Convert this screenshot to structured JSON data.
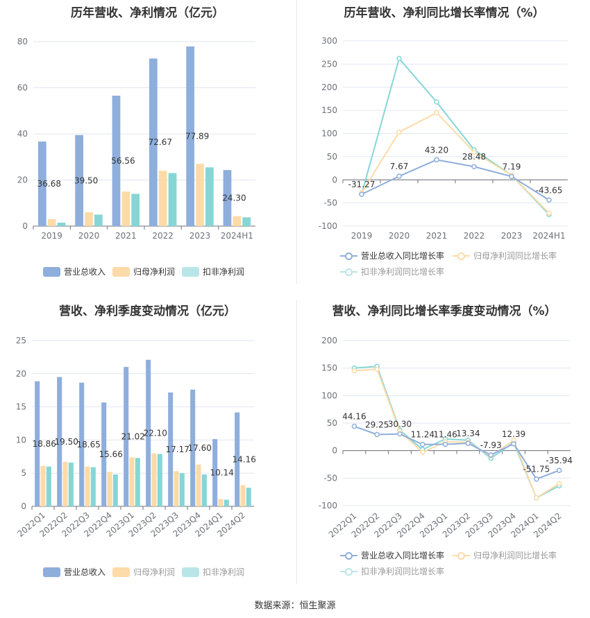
{
  "colors": {
    "revenue": "#8eaedc",
    "parent_profit": "#fcdba8",
    "deducted_profit": "#86d6d6",
    "grid": "#e0e6f1"
  },
  "footer": "数据来源：恒生聚源",
  "chart_data": [
    {
      "id": "annual_amount",
      "type": "bar",
      "title": "历年营收、净利情况（亿元）",
      "categories": [
        "2019",
        "2020",
        "2021",
        "2022",
        "2023",
        "2024H1"
      ],
      "ylim": [
        0,
        80
      ],
      "yticks": [
        0,
        20,
        40,
        60,
        80
      ],
      "series": [
        {
          "name": "营业总收入",
          "values": [
            36.68,
            39.5,
            56.56,
            72.67,
            77.89,
            24.3
          ],
          "labeled": true
        },
        {
          "name": "归母净利润",
          "values": [
            3.0,
            6.0,
            15.0,
            24.0,
            27.0,
            4.3
          ]
        },
        {
          "name": "扣非净利润",
          "values": [
            1.5,
            5.0,
            14.0,
            23.0,
            25.5,
            3.8
          ]
        }
      ],
      "legend_position": "bottom"
    },
    {
      "id": "annual_growth",
      "type": "line",
      "title": "历年营收、净利同比增长率情况（%）",
      "categories": [
        "2019",
        "2020",
        "2021",
        "2022",
        "2023",
        "2024H1"
      ],
      "ylim": [
        -100,
        300
      ],
      "yticks": [
        -100,
        -50,
        0,
        50,
        100,
        150,
        200,
        250,
        300
      ],
      "series": [
        {
          "name": "营业总收入同比增长率",
          "values": [
            -31.27,
            7.67,
            43.2,
            28.48,
            7.19,
            -43.65
          ],
          "labeled": true
        },
        {
          "name": "归母净利润同比增长率",
          "values": [
            -28,
            103,
            145,
            60,
            10,
            -72
          ]
        },
        {
          "name": "扣非净利润同比增长率",
          "values": [
            -31,
            262,
            168,
            65,
            10,
            -75
          ]
        }
      ],
      "legend_position": "bottom"
    },
    {
      "id": "quarterly_amount",
      "type": "bar",
      "title": "营收、净利季度变动情况（亿元）",
      "categories": [
        "2022Q1",
        "2022Q2",
        "2022Q3",
        "2022Q4",
        "2023Q1",
        "2023Q2",
        "2023Q3",
        "2023Q4",
        "2024Q1",
        "2024Q2"
      ],
      "ylim": [
        0,
        25
      ],
      "yticks": [
        0,
        5,
        10,
        15,
        20,
        25
      ],
      "series": [
        {
          "name": "营业总收入",
          "values": [
            18.86,
            19.5,
            18.65,
            15.66,
            21.02,
            22.1,
            17.17,
            17.6,
            10.14,
            14.16
          ],
          "labeled": true
        },
        {
          "name": "归母净利润",
          "values": [
            6.1,
            6.7,
            6.0,
            5.2,
            7.4,
            8.0,
            5.3,
            6.3,
            1.1,
            3.2
          ]
        },
        {
          "name": "扣非净利润",
          "values": [
            6.0,
            6.6,
            5.9,
            4.8,
            7.3,
            7.9,
            5.0,
            4.8,
            1.0,
            2.8
          ]
        }
      ],
      "legend_position": "bottom"
    },
    {
      "id": "quarterly_growth",
      "type": "line",
      "title": "营收、净利同比增长率季度变动情况（%）",
      "categories": [
        "2022Q1",
        "2022Q2",
        "2022Q3",
        "2022Q4",
        "2023Q1",
        "2023Q2",
        "2023Q3",
        "2023Q4",
        "2024Q1",
        "2024Q2"
      ],
      "ylim": [
        -100,
        200
      ],
      "yticks": [
        -100,
        -50,
        0,
        50,
        100,
        150,
        200
      ],
      "series": [
        {
          "name": "营业总收入同比增长率",
          "values": [
            44.16,
            29.25,
            30.3,
            11.24,
            11.46,
            13.34,
            -7.93,
            12.39,
            -51.75,
            -35.94
          ],
          "labeled": true
        },
        {
          "name": "归母净利润同比增长率",
          "values": [
            145,
            148,
            35,
            -3,
            16,
            15,
            -10,
            19,
            -86,
            -60
          ]
        },
        {
          "name": "扣非净利润同比增长率",
          "values": [
            150,
            153,
            37,
            2,
            21,
            19,
            -14,
            15,
            -86,
            -64
          ]
        }
      ],
      "legend_position": "bottom"
    }
  ]
}
